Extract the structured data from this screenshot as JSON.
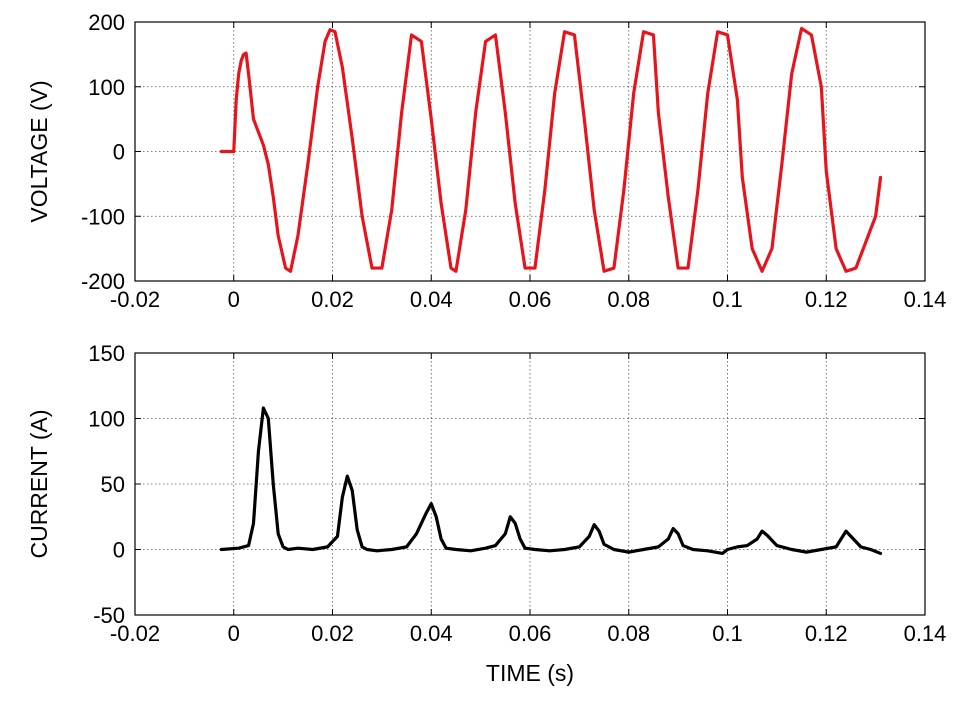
{
  "chart_data": [
    {
      "type": "line",
      "title": "",
      "xlabel": "",
      "ylabel": "VOLTAGE (V)",
      "xlim": [
        -0.02,
        0.14
      ],
      "ylim": [
        -200,
        200
      ],
      "xticks": [
        -0.02,
        0,
        0.02,
        0.04,
        0.06,
        0.08,
        0.1,
        0.12,
        0.14
      ],
      "xtick_labels": [
        "-0.02",
        "0",
        "0.02",
        "0.04",
        "0.06",
        "0.08",
        "0.1",
        "0.12",
        "0.14"
      ],
      "yticks": [
        200,
        100,
        0,
        -100,
        -200
      ],
      "ytick_labels": [
        "200",
        "100",
        "0",
        "-100",
        "-200"
      ],
      "grid": true,
      "series": [
        {
          "color": "#e8141c",
          "x": [
            -0.0025,
            -0.001,
            0.0,
            0.0005,
            0.001,
            0.0015,
            0.002,
            0.0025,
            0.003,
            0.004,
            0.005,
            0.006,
            0.007,
            0.008,
            0.009,
            0.0105,
            0.0115,
            0.013,
            0.015,
            0.017,
            0.0185,
            0.0195,
            0.0205,
            0.022,
            0.024,
            0.026,
            0.028,
            0.03,
            0.032,
            0.034,
            0.036,
            0.038,
            0.04,
            0.042,
            0.044,
            0.045,
            0.047,
            0.049,
            0.051,
            0.053,
            0.055,
            0.057,
            0.059,
            0.061,
            0.063,
            0.065,
            0.067,
            0.069,
            0.071,
            0.073,
            0.075,
            0.077,
            0.079,
            0.081,
            0.083,
            0.085,
            0.086,
            0.088,
            0.09,
            0.092,
            0.094,
            0.096,
            0.098,
            0.1,
            0.102,
            0.103,
            0.105,
            0.107,
            0.109,
            0.111,
            0.113,
            0.115,
            0.117,
            0.119,
            0.12,
            0.122,
            0.124,
            0.126,
            0.128,
            0.13,
            0.131
          ],
          "y": [
            0,
            0,
            0,
            80,
            120,
            140,
            150,
            152,
            120,
            50,
            30,
            10,
            -20,
            -70,
            -130,
            -180,
            -185,
            -130,
            -20,
            100,
            170,
            188,
            185,
            130,
            20,
            -100,
            -180,
            -180,
            -90,
            60,
            180,
            170,
            50,
            -80,
            -180,
            -185,
            -90,
            60,
            170,
            180,
            60,
            -80,
            -180,
            -180,
            -60,
            90,
            185,
            180,
            50,
            -90,
            -185,
            -180,
            -60,
            90,
            185,
            180,
            60,
            -70,
            -180,
            -180,
            -60,
            90,
            185,
            180,
            80,
            -40,
            -150,
            -185,
            -150,
            -20,
            120,
            190,
            180,
            100,
            -30,
            -150,
            -185,
            -180,
            -140,
            -100,
            -40
          ]
        }
      ]
    },
    {
      "type": "line",
      "title": "",
      "xlabel": "TIME (s)",
      "ylabel": "CURRENT (A)",
      "xlim": [
        -0.02,
        0.14
      ],
      "ylim": [
        -50,
        150
      ],
      "xticks": [
        -0.02,
        0,
        0.02,
        0.04,
        0.06,
        0.08,
        0.1,
        0.12,
        0.14
      ],
      "xtick_labels": [
        "-0.02",
        "0",
        "0.02",
        "0.04",
        "0.06",
        "0.08",
        "0.1",
        "0.12",
        "0.14"
      ],
      "yticks": [
        150,
        100,
        50,
        0,
        -50
      ],
      "ytick_labels": [
        "150",
        "100",
        "50",
        "0",
        "-50"
      ],
      "grid": true,
      "series": [
        {
          "color": "#000000",
          "x": [
            -0.0025,
            0.001,
            0.003,
            0.004,
            0.005,
            0.006,
            0.007,
            0.008,
            0.009,
            0.01,
            0.011,
            0.013,
            0.016,
            0.019,
            0.021,
            0.022,
            0.023,
            0.024,
            0.025,
            0.026,
            0.027,
            0.029,
            0.032,
            0.035,
            0.037,
            0.039,
            0.04,
            0.041,
            0.042,
            0.043,
            0.045,
            0.048,
            0.051,
            0.053,
            0.055,
            0.056,
            0.057,
            0.058,
            0.059,
            0.061,
            0.064,
            0.067,
            0.07,
            0.072,
            0.073,
            0.074,
            0.075,
            0.077,
            0.08,
            0.083,
            0.086,
            0.088,
            0.089,
            0.09,
            0.091,
            0.093,
            0.096,
            0.099,
            0.1,
            0.102,
            0.104,
            0.106,
            0.107,
            0.108,
            0.11,
            0.113,
            0.116,
            0.119,
            0.122,
            0.123,
            0.124,
            0.125,
            0.127,
            0.129,
            0.131
          ],
          "y": [
            0,
            1,
            3,
            20,
            75,
            108,
            100,
            50,
            12,
            2,
            0,
            1,
            0,
            2,
            10,
            40,
            56,
            45,
            15,
            2,
            0,
            -1,
            0,
            2,
            12,
            28,
            35,
            25,
            8,
            1,
            0,
            -1,
            1,
            3,
            12,
            25,
            20,
            8,
            1,
            0,
            -1,
            0,
            2,
            10,
            19,
            14,
            4,
            0,
            -2,
            0,
            2,
            8,
            16,
            12,
            3,
            0,
            -1,
            -3,
            0,
            2,
            3,
            8,
            14,
            11,
            3,
            0,
            -2,
            0,
            2,
            8,
            14,
            10,
            2,
            0,
            -3
          ]
        }
      ]
    }
  ]
}
